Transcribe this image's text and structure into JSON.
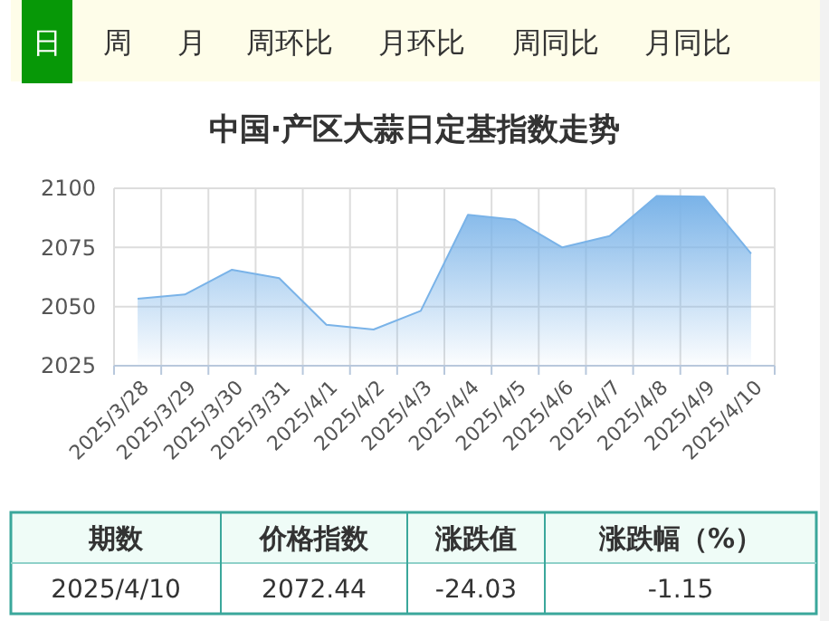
{
  "chart_data": [
    {
      "type": "other",
      "annotations": [
        "日",
        "周",
        "月",
        "周环比",
        "月环比",
        "周同比",
        "月同比"
      ]
    },
    {
      "type": "area",
      "title": "中国·产区大蒜日定基指数走势",
      "categories": [
        "2025/3/28",
        "2025/3/29",
        "2025/3/30",
        "2025/3/31",
        "2025/4/1",
        "2025/4/2",
        "2025/4/3",
        "2025/4/4",
        "2025/4/5",
        "2025/4/6",
        "2025/4/7",
        "2025/4/8",
        "2025/4/9",
        "2025/4/10"
      ],
      "series": [
        {
          "color": "#7ab3e8",
          "values": [
            2053.3,
            2055.1,
            2065.6,
            2062,
            2042.3,
            2040.3,
            2048.2,
            2088.8,
            2086.7,
            2075,
            2079.8,
            2096.7,
            2096.47,
            2072.44
          ]
        }
      ],
      "ylim": [
        2025,
        2100
      ],
      "yticks": [
        2025,
        2050,
        2075,
        2100
      ],
      "grid": true
    },
    {
      "type": "other",
      "annotations": [
        "期数",
        "价格指数",
        "涨跌值",
        "涨跌幅（%）",
        "2025/4/10",
        "2072.44",
        "-24.03",
        "-1.15"
      ]
    }
  ]
}
